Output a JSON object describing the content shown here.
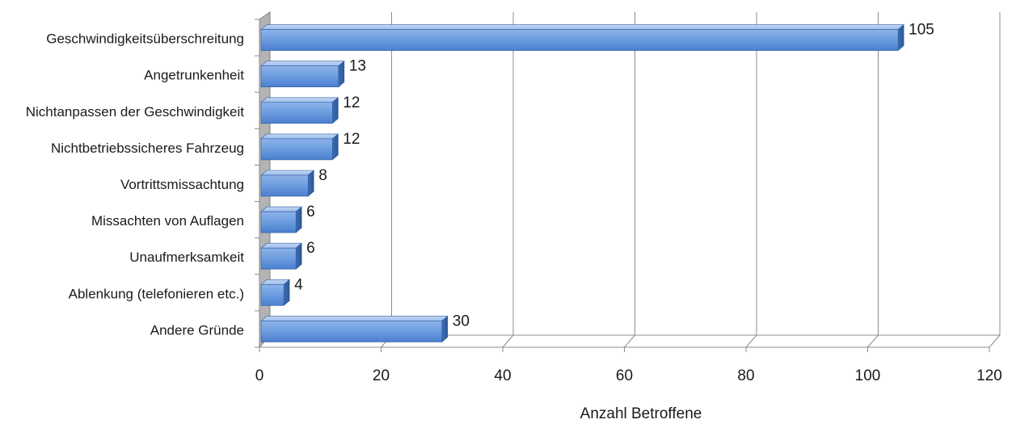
{
  "chart_data": {
    "type": "bar",
    "orientation": "horizontal",
    "style": "3d",
    "categories": [
      "Geschwindigkeitsüberschreitung",
      "Angetrunkenheit",
      "Nichtanpassen der Geschwindigkeit",
      "Nichtbetriebssicheres Fahrzeug",
      "Vortrittsmissachtung",
      "Missachten von Auflagen",
      "Unaufmerksamkeit",
      "Ablenkung (telefonieren etc.)",
      "Andere Gründe"
    ],
    "values": [
      105,
      13,
      12,
      12,
      8,
      6,
      6,
      4,
      30
    ],
    "data_labels": [
      "105",
      "13",
      "12",
      "12",
      "8",
      "6",
      "6",
      "4",
      "30"
    ],
    "xlabel": "Anzahl Betroffene",
    "ylabel": "",
    "xlim": [
      0,
      120
    ],
    "xticks": [
      "0",
      "20",
      "40",
      "60",
      "80",
      "100",
      "120"
    ],
    "grid": "vertical",
    "legend": "none",
    "colors": {
      "bar_face": "#5b8ed6",
      "bar_top": "#a9c6ef",
      "bar_side": "#3f6fb5",
      "bar_edge": "#2f5c9e",
      "wall": "#b3b3b3",
      "grid": "#8c8c8c",
      "text": "#1a1a1a"
    }
  }
}
